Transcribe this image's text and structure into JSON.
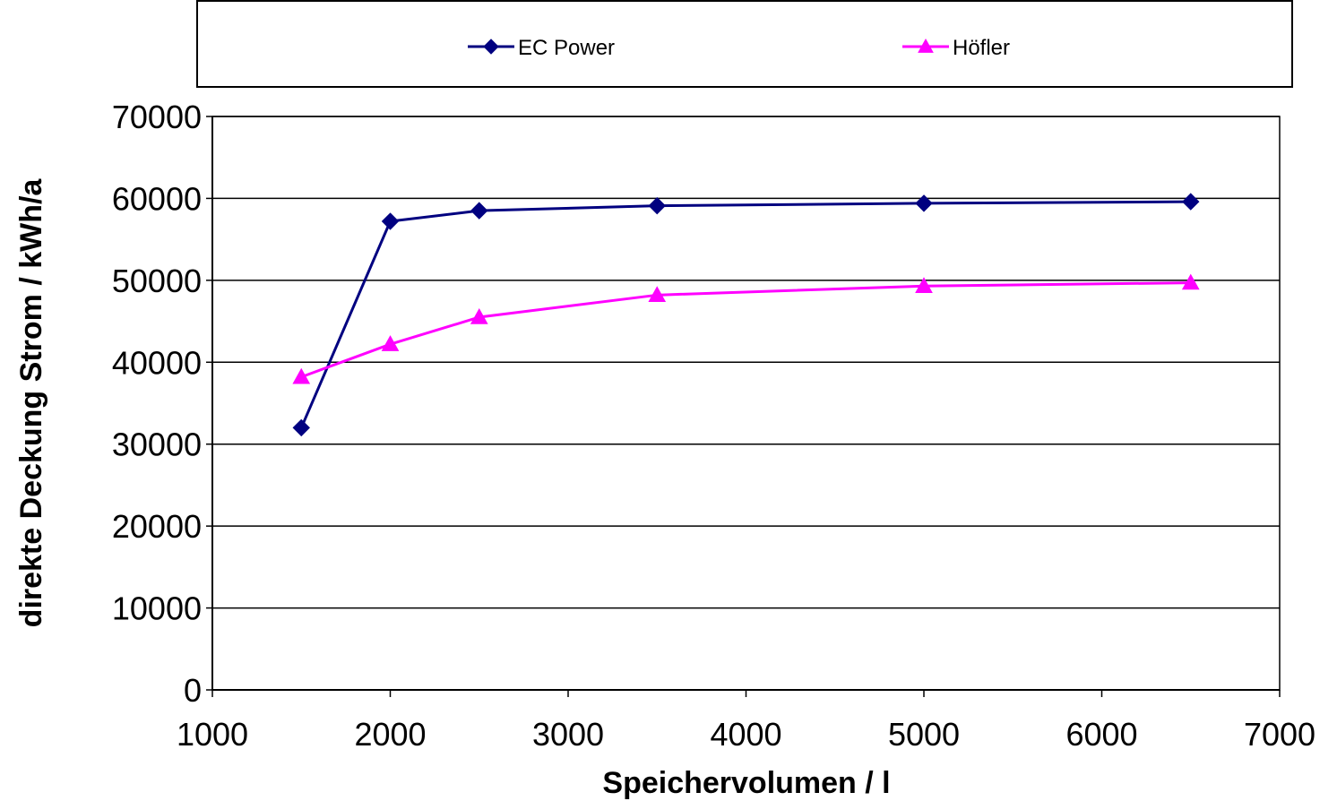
{
  "chart_data": {
    "type": "line",
    "title": "",
    "xlabel": "Speichervolumen / l",
    "ylabel": "direkte Deckung Strom  / kWh/a",
    "xlim": [
      1000,
      7000
    ],
    "ylim": [
      0,
      70000
    ],
    "x_ticks": [
      1000,
      2000,
      3000,
      4000,
      5000,
      6000,
      7000
    ],
    "y_ticks": [
      0,
      10000,
      20000,
      30000,
      40000,
      50000,
      60000,
      70000
    ],
    "grid": "horizontal",
    "legend_position": "top",
    "series": [
      {
        "name": "EC Power",
        "color": "#000080",
        "marker": "diamond",
        "x": [
          1500,
          2000,
          2500,
          3500,
          5000,
          6500
        ],
        "y": [
          32000,
          57200,
          58500,
          59100,
          59400,
          59600
        ]
      },
      {
        "name": "Höfler",
        "color": "#FF00FF",
        "marker": "triangle",
        "x": [
          1500,
          2000,
          2500,
          3500,
          5000,
          6500
        ],
        "y": [
          38200,
          42200,
          45500,
          48200,
          49300,
          49700
        ]
      }
    ]
  }
}
